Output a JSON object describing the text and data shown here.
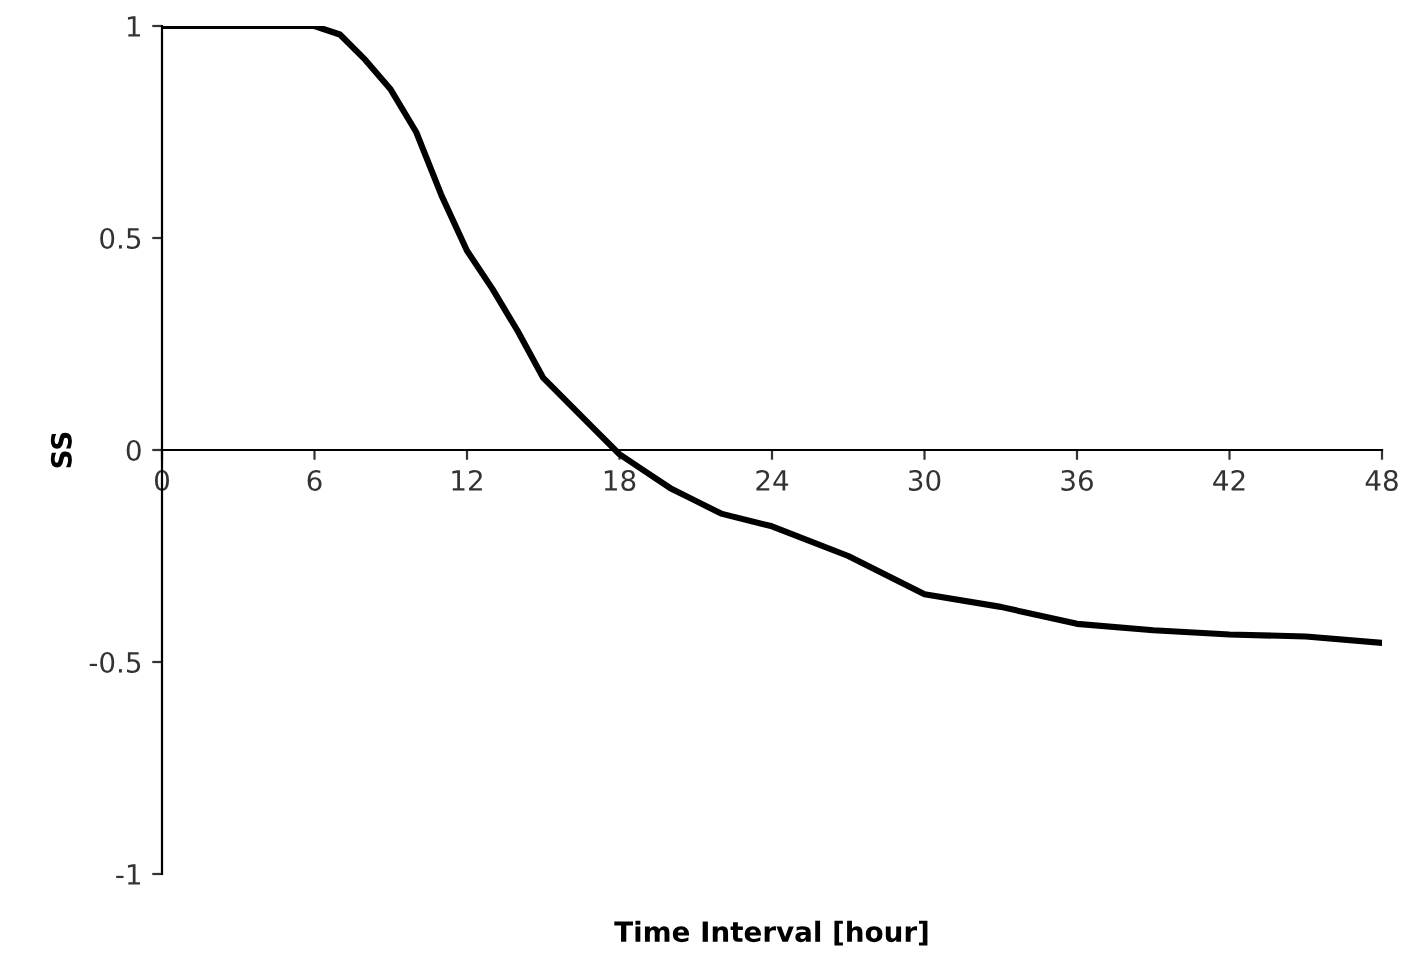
{
  "chart_data": {
    "type": "line",
    "xlabel": "Time Interval [hour]",
    "ylabel": "SS",
    "series": [
      {
        "color": "#000000",
        "x": [
          0,
          3,
          6,
          7,
          8,
          9,
          10,
          11,
          12,
          13,
          14,
          15,
          16,
          17,
          18,
          19,
          20,
          21,
          22,
          24,
          27,
          30,
          33,
          36,
          39,
          42,
          45,
          48
        ],
        "values": [
          1,
          1,
          1,
          0.98,
          0.92,
          0.85,
          0.75,
          0.6,
          0.47,
          0.38,
          0.28,
          0.17,
          0.11,
          0.05,
          -0.01,
          -0.05,
          -0.09,
          -0.12,
          -0.15,
          -0.18,
          -0.25,
          -0.34,
          -0.37,
          -0.41,
          -0.425,
          -0.435,
          -0.44,
          -0.455
        ]
      }
    ],
    "xlim": [
      0,
      48
    ],
    "xticks": [
      0,
      6,
      12,
      18,
      24,
      30,
      36,
      42,
      48
    ],
    "ylim": [
      -1,
      1
    ],
    "yticks": [
      -1,
      -0.5,
      0,
      0.5,
      1
    ],
    "grid": false,
    "marker": "none",
    "line_style": "solid"
  }
}
